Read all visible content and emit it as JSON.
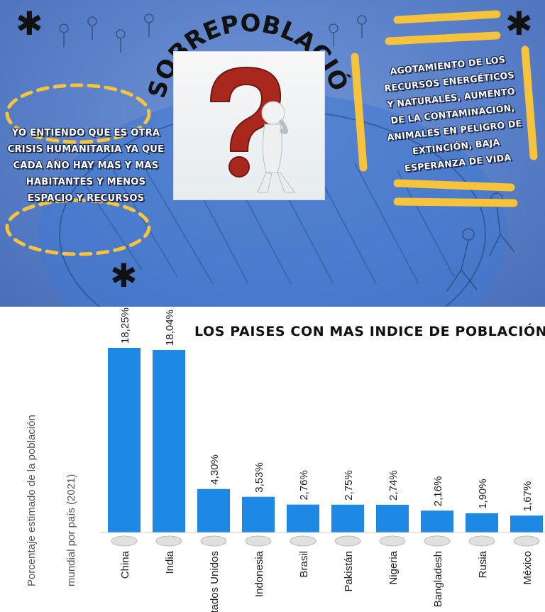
{
  "poster": {
    "title": "SOBREPOBLACIÓN",
    "left_text": "YO ENTIENDO QUE ES OTRA CRISIS HUMANITARIA YA QUE CADA AÑO HAY MAS Y MAS HABITANTES Y MENOS ESPACIO Y RECURSOS",
    "right_text": "AGOTAMIENTO DE LOS RECURSOS ENERGÉTICOS Y NATURALES, AUMENTO DE LA CONTAMINACIÓN, ANIMALES EN PELIGRO DE EXTINCIÓN, BAJA ESPERANZA DE VIDA",
    "icons": [
      "asterisk-icon",
      "question-mark-figure-icon"
    ],
    "colors": {
      "background": "#5a80c9",
      "accent_yellow": "#f6c33a",
      "text_white": "#ffffff"
    }
  },
  "chart_data": {
    "type": "bar",
    "title": "LOS PAISES CON MAS INDICE DE POBLACIÓN",
    "ylabel_line1": "Porcentaje estimado de la población",
    "ylabel_line2": "mundial por país (2021)",
    "categories": [
      "China",
      "India",
      "Estados Unidos",
      "Indonesia",
      "Brasil",
      "Pakistán",
      "Nigeria",
      "Bangladesh",
      "Rusia",
      "México"
    ],
    "values": [
      18.25,
      18.04,
      4.3,
      3.53,
      2.76,
      2.75,
      2.74,
      2.16,
      1.9,
      1.67
    ],
    "value_labels": [
      "18,25%",
      "18,04%",
      "4,30%",
      "3,53%",
      "2,76%",
      "2,75%",
      "2,74%",
      "2,16%",
      "1,90%",
      "1,67%"
    ],
    "ylim": [
      0,
      18.25
    ],
    "grid": false,
    "bar_color": "#1e88e5"
  }
}
